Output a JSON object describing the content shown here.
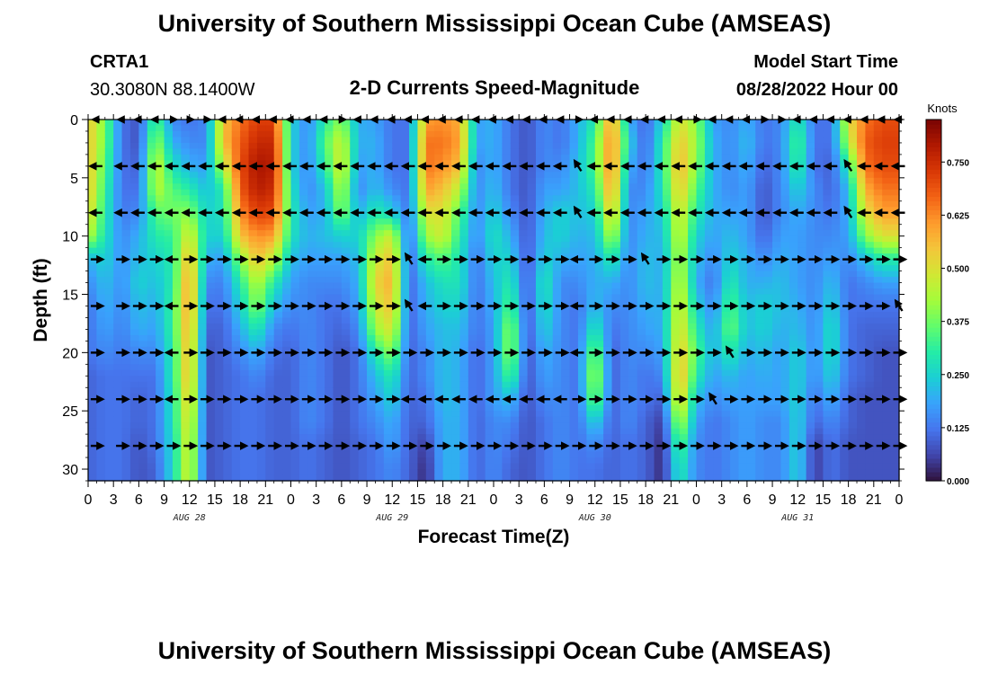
{
  "header": {
    "title": "University of Southern Mississippi Ocean Cube (AMSEAS)",
    "station": "CRTA1",
    "coords": "30.3080N  88.1400W",
    "plot_title": "2-D Currents Speed-Magnitude",
    "model_start_label": "Model Start Time",
    "model_start_value": "08/28/2022 Hour 00"
  },
  "footer": {
    "title": "University of Southern Mississippi Ocean Cube (AMSEAS)"
  },
  "chart_data": {
    "type": "heatmap",
    "title": "2-D Currents Speed-Magnitude",
    "xlabel": "Forecast Time(Z)",
    "ylabel": "Depth (ft)",
    "x_hours_range": [
      0,
      96
    ],
    "x_tick_labels": [
      "0",
      "3",
      "6",
      "9",
      "12",
      "15",
      "18",
      "21",
      "0",
      "3",
      "6",
      "9",
      "12",
      "15",
      "18",
      "21",
      "0",
      "3",
      "6",
      "9",
      "12",
      "15",
      "18",
      "21",
      "0",
      "3",
      "6",
      "9",
      "12",
      "15",
      "18",
      "21",
      "0"
    ],
    "day_labels": [
      {
        "label": "AUG 28",
        "hour": 12
      },
      {
        "label": "AUG 29",
        "hour": 36
      },
      {
        "label": "AUG 30",
        "hour": 60
      },
      {
        "label": "AUG 31",
        "hour": 84
      }
    ],
    "y_range": [
      0,
      31
    ],
    "y_ticks": [
      0,
      5,
      10,
      15,
      20,
      25,
      30
    ],
    "colorbar": {
      "title": "Knots",
      "range": [
        0,
        0.85
      ],
      "tick_values": [
        0.0,
        0.125,
        0.25,
        0.375,
        0.5,
        0.625,
        0.75
      ],
      "tick_labels": [
        "0.000",
        "0.125",
        "0.250",
        "0.375",
        "0.500",
        "0.625",
        "0.750"
      ],
      "colors": [
        "#30123b",
        "#4145ab",
        "#4675ed",
        "#39a2fc",
        "#1bcfd4",
        "#24eca6",
        "#61fc6c",
        "#a4fc3b",
        "#d1e834",
        "#f3c63a",
        "#fe9b2d",
        "#f36315",
        "#d93806",
        "#b11901",
        "#7a0403"
      ]
    },
    "profile_depths_ft": [
      0,
      2,
      4,
      6,
      8,
      10,
      12,
      14,
      16,
      18,
      20,
      22,
      24,
      26,
      28,
      30,
      31
    ],
    "speed_by_hour": [
      {
        "hour": 0,
        "speed": [
          0.55,
          0.55,
          0.55,
          0.55,
          0.52,
          0.45,
          0.2,
          0.15,
          0.12,
          0.12,
          0.12,
          0.1,
          0.1,
          0.1,
          0.1,
          0.1,
          0.1
        ]
      },
      {
        "hour": 2,
        "speed": [
          0.38,
          0.38,
          0.35,
          0.32,
          0.3,
          0.28,
          0.25,
          0.22,
          0.2,
          0.18,
          0.15,
          0.12,
          0.12,
          0.12,
          0.12,
          0.12,
          0.12
        ]
      },
      {
        "hour": 4,
        "speed": [
          0.12,
          0.12,
          0.12,
          0.12,
          0.13,
          0.15,
          0.16,
          0.16,
          0.15,
          0.14,
          0.13,
          0.12,
          0.12,
          0.12,
          0.12,
          0.12,
          0.12
        ]
      },
      {
        "hour": 6,
        "speed": [
          0.08,
          0.08,
          0.1,
          0.12,
          0.15,
          0.2,
          0.22,
          0.25,
          0.22,
          0.2,
          0.15,
          0.12,
          0.1,
          0.1,
          0.08,
          0.08,
          0.08
        ]
      },
      {
        "hour": 8,
        "speed": [
          0.35,
          0.42,
          0.48,
          0.45,
          0.35,
          0.3,
          0.25,
          0.22,
          0.2,
          0.18,
          0.15,
          0.12,
          0.12,
          0.12,
          0.12,
          0.1,
          0.1
        ]
      },
      {
        "hour": 10,
        "speed": [
          0.15,
          0.2,
          0.28,
          0.35,
          0.38,
          0.32,
          0.3,
          0.3,
          0.32,
          0.32,
          0.3,
          0.3,
          0.28,
          0.28,
          0.26,
          0.26,
          0.26
        ]
      },
      {
        "hour": 12,
        "speed": [
          0.12,
          0.15,
          0.2,
          0.3,
          0.4,
          0.5,
          0.58,
          0.62,
          0.62,
          0.6,
          0.58,
          0.58,
          0.55,
          0.52,
          0.5,
          0.5,
          0.5
        ]
      },
      {
        "hour": 14,
        "speed": [
          0.15,
          0.15,
          0.18,
          0.22,
          0.25,
          0.25,
          0.2,
          0.15,
          0.12,
          0.1,
          0.08,
          0.08,
          0.08,
          0.08,
          0.08,
          0.08,
          0.08
        ]
      },
      {
        "hour": 16,
        "speed": [
          0.55,
          0.55,
          0.45,
          0.3,
          0.28,
          0.25,
          0.18,
          0.14,
          0.12,
          0.1,
          0.1,
          0.1,
          0.1,
          0.1,
          0.1,
          0.1,
          0.1
        ]
      },
      {
        "hour": 18,
        "speed": [
          0.65,
          0.68,
          0.7,
          0.68,
          0.62,
          0.55,
          0.4,
          0.3,
          0.25,
          0.2,
          0.15,
          0.12,
          0.12,
          0.12,
          0.12,
          0.12,
          0.12
        ]
      },
      {
        "hour": 20,
        "speed": [
          0.72,
          0.76,
          0.8,
          0.78,
          0.72,
          0.62,
          0.55,
          0.45,
          0.4,
          0.3,
          0.2,
          0.15,
          0.12,
          0.12,
          0.12,
          0.12,
          0.12
        ]
      },
      {
        "hour": 22,
        "speed": [
          0.72,
          0.76,
          0.78,
          0.75,
          0.7,
          0.6,
          0.45,
          0.3,
          0.22,
          0.15,
          0.12,
          0.1,
          0.1,
          0.1,
          0.1,
          0.1,
          0.1
        ]
      },
      {
        "hour": 24,
        "speed": [
          0.25,
          0.25,
          0.25,
          0.28,
          0.3,
          0.28,
          0.22,
          0.18,
          0.15,
          0.12,
          0.1,
          0.1,
          0.1,
          0.1,
          0.1,
          0.1,
          0.1
        ]
      },
      {
        "hour": 26,
        "speed": [
          0.15,
          0.15,
          0.15,
          0.15,
          0.18,
          0.2,
          0.18,
          0.15,
          0.15,
          0.15,
          0.15,
          0.15,
          0.15,
          0.15,
          0.12,
          0.12,
          0.12
        ]
      },
      {
        "hour": 28,
        "speed": [
          0.3,
          0.35,
          0.3,
          0.22,
          0.2,
          0.22,
          0.18,
          0.15,
          0.12,
          0.12,
          0.12,
          0.12,
          0.12,
          0.12,
          0.1,
          0.1,
          0.1
        ]
      },
      {
        "hour": 30,
        "speed": [
          0.4,
          0.48,
          0.5,
          0.45,
          0.4,
          0.25,
          0.18,
          0.15,
          0.12,
          0.1,
          0.08,
          0.08,
          0.08,
          0.08,
          0.08,
          0.08,
          0.08
        ]
      },
      {
        "hour": 32,
        "speed": [
          0.2,
          0.2,
          0.18,
          0.15,
          0.2,
          0.25,
          0.22,
          0.2,
          0.18,
          0.15,
          0.12,
          0.12,
          0.12,
          0.12,
          0.1,
          0.1,
          0.1
        ]
      },
      {
        "hour": 34,
        "speed": [
          0.18,
          0.2,
          0.2,
          0.22,
          0.3,
          0.4,
          0.48,
          0.52,
          0.48,
          0.42,
          0.3,
          0.22,
          0.18,
          0.15,
          0.12,
          0.12,
          0.12
        ]
      },
      {
        "hour": 36,
        "speed": [
          0.12,
          0.12,
          0.12,
          0.15,
          0.25,
          0.48,
          0.55,
          0.58,
          0.55,
          0.5,
          0.4,
          0.3,
          0.25,
          0.2,
          0.18,
          0.15,
          0.15
        ]
      },
      {
        "hour": 38,
        "speed": [
          0.12,
          0.12,
          0.12,
          0.12,
          0.12,
          0.1,
          0.1,
          0.1,
          0.1,
          0.1,
          0.1,
          0.1,
          0.1,
          0.1,
          0.1,
          0.1,
          0.1
        ]
      },
      {
        "hour": 40,
        "speed": [
          0.6,
          0.65,
          0.65,
          0.6,
          0.5,
          0.42,
          0.3,
          0.22,
          0.2,
          0.18,
          0.15,
          0.15,
          0.12,
          0.1,
          0.05,
          0.03,
          0.03
        ]
      },
      {
        "hour": 42,
        "speed": [
          0.62,
          0.65,
          0.62,
          0.55,
          0.5,
          0.48,
          0.35,
          0.28,
          0.25,
          0.22,
          0.22,
          0.22,
          0.22,
          0.2,
          0.2,
          0.2,
          0.2
        ]
      },
      {
        "hour": 44,
        "speed": [
          0.58,
          0.6,
          0.55,
          0.45,
          0.35,
          0.3,
          0.28,
          0.28,
          0.25,
          0.22,
          0.2,
          0.2,
          0.2,
          0.2,
          0.2,
          0.2,
          0.2
        ]
      },
      {
        "hour": 46,
        "speed": [
          0.18,
          0.18,
          0.15,
          0.15,
          0.15,
          0.15,
          0.12,
          0.12,
          0.12,
          0.12,
          0.1,
          0.1,
          0.1,
          0.1,
          0.1,
          0.1,
          0.1
        ]
      },
      {
        "hour": 48,
        "speed": [
          0.2,
          0.2,
          0.2,
          0.22,
          0.25,
          0.28,
          0.25,
          0.22,
          0.2,
          0.18,
          0.18,
          0.18,
          0.18,
          0.15,
          0.15,
          0.15,
          0.15
        ]
      },
      {
        "hour": 50,
        "speed": [
          0.12,
          0.12,
          0.12,
          0.12,
          0.15,
          0.2,
          0.25,
          0.3,
          0.35,
          0.42,
          0.42,
          0.35,
          0.22,
          0.15,
          0.12,
          0.1,
          0.1
        ]
      },
      {
        "hour": 52,
        "speed": [
          0.08,
          0.08,
          0.08,
          0.08,
          0.08,
          0.08,
          0.08,
          0.08,
          0.08,
          0.08,
          0.08,
          0.08,
          0.08,
          0.08,
          0.08,
          0.08,
          0.08
        ]
      },
      {
        "hour": 54,
        "speed": [
          0.15,
          0.15,
          0.15,
          0.18,
          0.2,
          0.22,
          0.25,
          0.3,
          0.28,
          0.25,
          0.2,
          0.18,
          0.15,
          0.12,
          0.12,
          0.12,
          0.12
        ]
      },
      {
        "hour": 56,
        "speed": [
          0.12,
          0.12,
          0.15,
          0.18,
          0.25,
          0.25,
          0.2,
          0.15,
          0.15,
          0.15,
          0.15,
          0.15,
          0.15,
          0.15,
          0.15,
          0.15,
          0.15
        ]
      },
      {
        "hour": 58,
        "speed": [
          0.2,
          0.2,
          0.22,
          0.22,
          0.22,
          0.2,
          0.18,
          0.15,
          0.12,
          0.12,
          0.12,
          0.12,
          0.12,
          0.12,
          0.12,
          0.12,
          0.12
        ]
      },
      {
        "hour": 60,
        "speed": [
          0.3,
          0.35,
          0.35,
          0.3,
          0.25,
          0.22,
          0.2,
          0.2,
          0.22,
          0.3,
          0.4,
          0.45,
          0.4,
          0.25,
          0.15,
          0.12,
          0.12
        ]
      },
      {
        "hour": 62,
        "speed": [
          0.62,
          0.65,
          0.65,
          0.62,
          0.55,
          0.45,
          0.3,
          0.2,
          0.15,
          0.12,
          0.1,
          0.1,
          0.1,
          0.1,
          0.1,
          0.1,
          0.1
        ]
      },
      {
        "hour": 64,
        "speed": [
          0.2,
          0.25,
          0.2,
          0.15,
          0.15,
          0.15,
          0.15,
          0.15,
          0.15,
          0.15,
          0.15,
          0.15,
          0.15,
          0.15,
          0.12,
          0.12,
          0.12
        ]
      },
      {
        "hour": 66,
        "speed": [
          0.1,
          0.1,
          0.12,
          0.15,
          0.18,
          0.2,
          0.22,
          0.22,
          0.2,
          0.18,
          0.15,
          0.12,
          0.12,
          0.1,
          0.1,
          0.1,
          0.1
        ]
      },
      {
        "hour": 68,
        "speed": [
          0.25,
          0.3,
          0.3,
          0.28,
          0.25,
          0.22,
          0.2,
          0.2,
          0.2,
          0.2,
          0.18,
          0.15,
          0.1,
          0.05,
          0.03,
          0.03,
          0.03
        ]
      },
      {
        "hour": 70,
        "speed": [
          0.5,
          0.55,
          0.58,
          0.55,
          0.5,
          0.48,
          0.45,
          0.48,
          0.5,
          0.52,
          0.55,
          0.58,
          0.55,
          0.45,
          0.35,
          0.3,
          0.3
        ]
      },
      {
        "hour": 72,
        "speed": [
          0.4,
          0.42,
          0.4,
          0.35,
          0.3,
          0.25,
          0.22,
          0.2,
          0.25,
          0.3,
          0.35,
          0.3,
          0.22,
          0.18,
          0.15,
          0.15,
          0.15
        ]
      },
      {
        "hour": 74,
        "speed": [
          0.18,
          0.2,
          0.2,
          0.2,
          0.2,
          0.18,
          0.15,
          0.12,
          0.15,
          0.18,
          0.2,
          0.18,
          0.15,
          0.12,
          0.12,
          0.12,
          0.12
        ]
      },
      {
        "hour": 76,
        "speed": [
          0.15,
          0.15,
          0.15,
          0.15,
          0.18,
          0.22,
          0.25,
          0.3,
          0.35,
          0.38,
          0.3,
          0.22,
          0.18,
          0.15,
          0.15,
          0.15,
          0.15
        ]
      },
      {
        "hour": 78,
        "speed": [
          0.2,
          0.22,
          0.2,
          0.18,
          0.18,
          0.18,
          0.2,
          0.2,
          0.22,
          0.22,
          0.2,
          0.18,
          0.18,
          0.18,
          0.18,
          0.18,
          0.18
        ]
      },
      {
        "hour": 80,
        "speed": [
          0.12,
          0.12,
          0.1,
          0.08,
          0.08,
          0.1,
          0.15,
          0.2,
          0.25,
          0.25,
          0.22,
          0.2,
          0.18,
          0.15,
          0.15,
          0.15,
          0.15
        ]
      },
      {
        "hour": 82,
        "speed": [
          0.15,
          0.15,
          0.15,
          0.15,
          0.15,
          0.18,
          0.2,
          0.22,
          0.22,
          0.2,
          0.18,
          0.18,
          0.18,
          0.15,
          0.15,
          0.15,
          0.15
        ]
      },
      {
        "hour": 84,
        "speed": [
          0.3,
          0.35,
          0.32,
          0.25,
          0.2,
          0.18,
          0.18,
          0.18,
          0.2,
          0.22,
          0.25,
          0.25,
          0.25,
          0.25,
          0.25,
          0.25,
          0.25
        ]
      },
      {
        "hour": 86,
        "speed": [
          0.12,
          0.12,
          0.12,
          0.15,
          0.15,
          0.15,
          0.15,
          0.15,
          0.15,
          0.15,
          0.15,
          0.15,
          0.12,
          0.1,
          0.05,
          0.05,
          0.05
        ]
      },
      {
        "hour": 88,
        "speed": [
          0.12,
          0.12,
          0.1,
          0.1,
          0.12,
          0.15,
          0.18,
          0.22,
          0.25,
          0.28,
          0.28,
          0.25,
          0.2,
          0.15,
          0.12,
          0.12,
          0.12
        ]
      },
      {
        "hour": 90,
        "speed": [
          0.5,
          0.45,
          0.3,
          0.22,
          0.2,
          0.18,
          0.15,
          0.12,
          0.12,
          0.12,
          0.12,
          0.12,
          0.1,
          0.1,
          0.08,
          0.08,
          0.08
        ]
      },
      {
        "hour": 92,
        "speed": [
          0.65,
          0.68,
          0.65,
          0.58,
          0.5,
          0.4,
          0.22,
          0.15,
          0.12,
          0.1,
          0.1,
          0.1,
          0.08,
          0.08,
          0.08,
          0.08,
          0.08
        ]
      },
      {
        "hour": 94,
        "speed": [
          0.7,
          0.72,
          0.7,
          0.65,
          0.6,
          0.5,
          0.3,
          0.18,
          0.12,
          0.1,
          0.08,
          0.08,
          0.08,
          0.08,
          0.08,
          0.08,
          0.08
        ]
      },
      {
        "hour": 96,
        "speed": [
          0.7,
          0.72,
          0.7,
          0.65,
          0.6,
          0.5,
          0.3,
          0.18,
          0.12,
          0.1,
          0.08,
          0.08,
          0.08,
          0.08,
          0.08,
          0.08,
          0.08
        ]
      }
    ],
    "vector_depths_ft": [
      0,
      4,
      8,
      12,
      16,
      20,
      24,
      28
    ],
    "vector_hours": [
      1,
      4,
      6,
      8,
      10,
      12,
      14,
      16,
      18,
      20,
      22,
      24,
      26,
      28,
      30,
      32,
      34,
      36,
      38,
      40,
      42,
      44,
      46,
      48,
      50,
      52,
      54,
      56,
      58,
      60,
      62,
      64,
      66,
      68,
      70,
      72,
      74,
      76,
      78,
      80,
      82,
      84,
      86,
      88,
      90,
      92,
      94,
      96
    ],
    "vector_directions": [
      "WWWWEEEWWWWWWWEWWWWWWWWWWWWWEWWWWWWEWWWEEWWWWWWW",
      "WWWWWWWWWWWWWWWWWWWWWWWWWWWWNWWWWWWWWWWWWWWWNWWW",
      "WWWWWWWWWWWWWWWWWWWWWWWWWWWWNWWWWWWWWWWWWWWWNWWW",
      "EEEEWEEEEEEEEEEEEENWEEEEEEEEWEEENEEEEEEEEEEEEEEE",
      "EEEEWEEEEEEEEEEEEENWEEEEEEEEWEEEEEEEEEEEEEEEEEEN",
      "EEEEWEEEEEEEEEEEEEEEEEEEEEEEWEEEEEEEENEEEEEEEEEE",
      "EEEEWEEEEEEEEEEEEEWWWWWWWWWWEEEEEEEENEEEEEEEEEEE",
      "EEEEEEEEEEEEEEEEEEEEEEEEEEEEEEEEEEEEEEEEEEEEEEEE"
    ]
  }
}
